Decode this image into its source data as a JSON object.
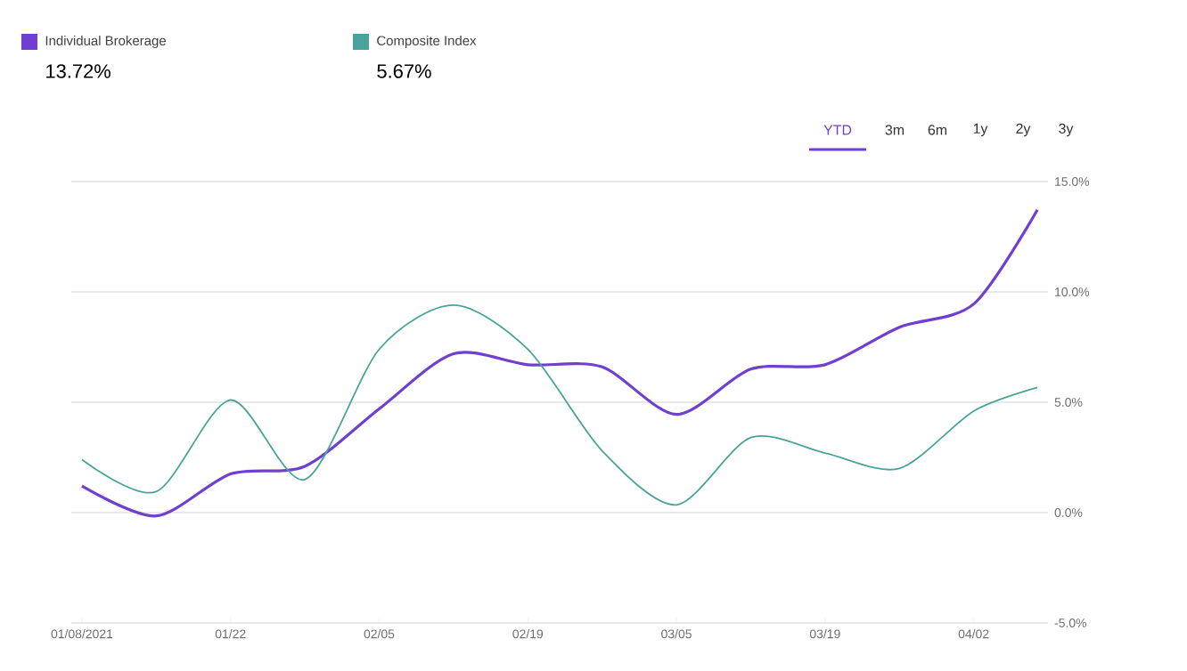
{
  "chart_data": {
    "type": "line",
    "x": [
      "2021-01-08",
      "2021-01-15",
      "2021-01-22",
      "2021-01-29",
      "2021-02-05",
      "2021-02-12",
      "2021-02-19",
      "2021-02-26",
      "2021-03-05",
      "2021-03-12",
      "2021-03-19",
      "2021-03-26",
      "2021-04-02",
      "2021-04-08"
    ],
    "series": [
      {
        "name": "Individual Brokerage",
        "color": "#6f3fcf",
        "values": [
          1.2,
          -0.15,
          1.75,
          2.1,
          4.7,
          7.2,
          6.7,
          6.6,
          4.45,
          6.5,
          6.7,
          8.4,
          9.45,
          13.72
        ]
      },
      {
        "name": "Composite Index",
        "color": "#4aa39b",
        "values": [
          2.4,
          0.95,
          5.1,
          1.5,
          7.4,
          9.4,
          7.4,
          2.8,
          0.35,
          3.4,
          2.7,
          2.0,
          4.6,
          5.67
        ]
      }
    ],
    "xlim": [
      "2021-01-07",
      "2021-04-09"
    ],
    "xticks": [
      {
        "value": "2021-01-08",
        "label": "01/08/2021"
      },
      {
        "value": "2021-01-22",
        "label": "01/22"
      },
      {
        "value": "2021-02-05",
        "label": "02/05"
      },
      {
        "value": "2021-02-19",
        "label": "02/19"
      },
      {
        "value": "2021-03-05",
        "label": "03/05"
      },
      {
        "value": "2021-03-19",
        "label": "03/19"
      },
      {
        "value": "2021-04-02",
        "label": "04/02"
      }
    ],
    "ylim": [
      -5,
      15
    ],
    "yticks": [
      {
        "value": -5,
        "label": "-5.0%"
      },
      {
        "value": 0,
        "label": "0.0%"
      },
      {
        "value": 5,
        "label": "5.0%"
      },
      {
        "value": 10,
        "label": "10.0%"
      },
      {
        "value": 15,
        "label": "15.0%"
      }
    ],
    "grid": "y",
    "legend": "top left",
    "annotations": [
      "13.72%",
      "5.67%",
      "YTD",
      "3m",
      "6m",
      "1y",
      "2y",
      "3y"
    ]
  }
}
